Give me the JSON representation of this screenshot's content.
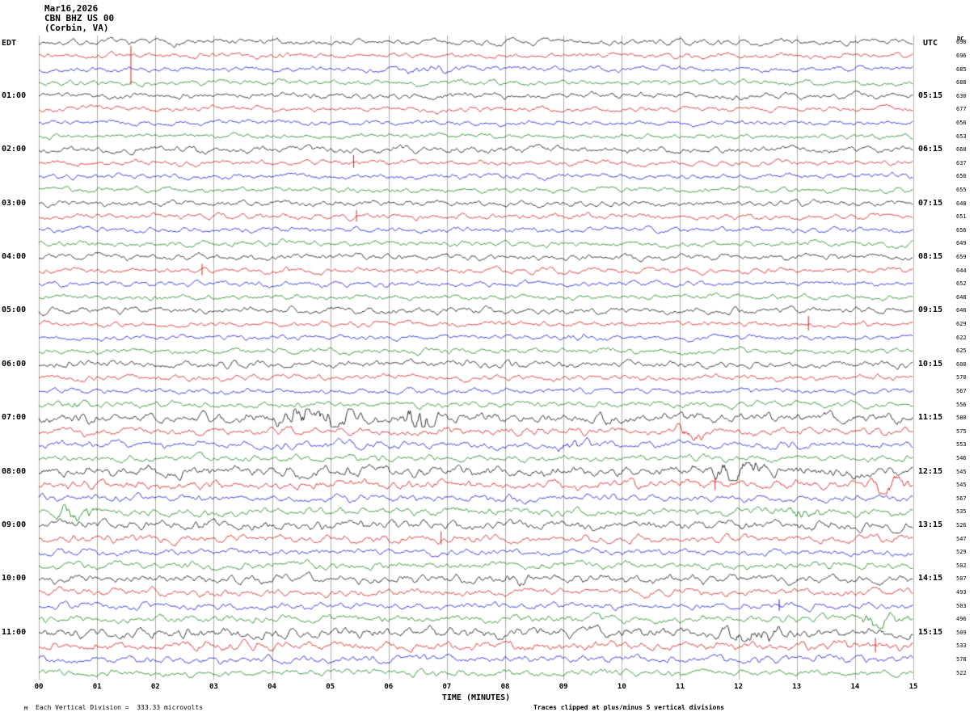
{
  "header": {
    "date": "Mar16,2026",
    "station": "CBN BHZ US 00",
    "location": "(Corbin, VA)",
    "left_timezone": "EDT",
    "right_timezone": "UTC",
    "dc_column_label": "DC"
  },
  "x_axis": {
    "label": "TIME (MINUTES)",
    "ticks": [
      "00",
      "01",
      "02",
      "03",
      "04",
      "05",
      "06",
      "07",
      "08",
      "09",
      "10",
      "11",
      "12",
      "13",
      "14",
      "15"
    ]
  },
  "footer": {
    "marker": "M",
    "scale_note": "Each Vertical Division =  333.33 microvolts",
    "clip_note": "Traces clipped at plus/minus 5 vertical divisions"
  },
  "left_time_labels": [
    {
      "row": 4,
      "text": "01:00"
    },
    {
      "row": 8,
      "text": "02:00"
    },
    {
      "row": 12,
      "text": "03:00"
    },
    {
      "row": 16,
      "text": "04:00"
    },
    {
      "row": 20,
      "text": "05:00"
    },
    {
      "row": 24,
      "text": "06:00"
    },
    {
      "row": 28,
      "text": "07:00"
    },
    {
      "row": 32,
      "text": "08:00"
    },
    {
      "row": 36,
      "text": "09:00"
    },
    {
      "row": 40,
      "text": "10:00"
    },
    {
      "row": 44,
      "text": "11:00"
    }
  ],
  "right_time_labels": [
    {
      "row": 4,
      "text": "05:15"
    },
    {
      "row": 8,
      "text": "06:15"
    },
    {
      "row": 12,
      "text": "07:15"
    },
    {
      "row": 16,
      "text": "08:15"
    },
    {
      "row": 20,
      "text": "09:15"
    },
    {
      "row": 24,
      "text": "10:15"
    },
    {
      "row": 28,
      "text": "11:15"
    },
    {
      "row": 32,
      "text": "12:15"
    },
    {
      "row": 36,
      "text": "13:15"
    },
    {
      "row": 40,
      "text": "14:15"
    },
    {
      "row": 44,
      "text": "15:15"
    }
  ],
  "dc_values": [
    690,
    696,
    685,
    688,
    630,
    677,
    656,
    653,
    660,
    637,
    650,
    655,
    648,
    651,
    656,
    649,
    659,
    644,
    652,
    648,
    646,
    629,
    622,
    625,
    600,
    570,
    567,
    556,
    580,
    575,
    553,
    546,
    545,
    545,
    567,
    535,
    526,
    547,
    529,
    502,
    507,
    493,
    503,
    496,
    509,
    533,
    578,
    522
  ],
  "chart_data": {
    "type": "line",
    "subtype": "seismogram-helicorder",
    "title": "CBN BHZ US 00 (Corbin, VA) — Mar16,2026",
    "xlabel": "TIME (MINUTES)",
    "xlim": [
      0,
      15
    ],
    "rows": 48,
    "minutes_per_row": 15,
    "first_row_start_edt": "00:00",
    "utc_offset_hours": 4,
    "grid": true,
    "grid_color": "#8a8a78",
    "trace_colors": [
      "#000000",
      "#d40000",
      "#0000d4",
      "#007a00"
    ],
    "units_note": "Each vertical division = 333.33 microvolts; traces clipped at plus/minus 5 vertical divisions",
    "row_amplitudes": [
      1.0,
      0.9,
      0.85,
      0.9,
      1.0,
      0.9,
      0.8,
      0.85,
      1.1,
      0.9,
      0.85,
      0.9,
      1.0,
      0.95,
      0.9,
      0.95,
      1.05,
      0.95,
      0.9,
      0.9,
      1.1,
      0.9,
      0.85,
      0.95,
      1.2,
      1.0,
      0.9,
      1.0,
      1.7,
      1.3,
      1.2,
      1.1,
      1.8,
      1.5,
      1.2,
      1.3,
      1.5,
      1.3,
      1.1,
      1.2,
      1.4,
      1.2,
      1.1,
      1.2,
      1.7,
      1.4,
      1.2,
      1.1
    ],
    "bursts": [
      {
        "row": 2,
        "start": 6.0,
        "end": 7.2,
        "scale": 1.9
      },
      {
        "row": 22,
        "start": 9.0,
        "end": 9.6,
        "scale": 1.9
      },
      {
        "row": 27,
        "start": 0.45,
        "end": 0.95,
        "scale": 2.3
      },
      {
        "row": 28,
        "start": 3.9,
        "end": 5.6,
        "scale": 3.2
      },
      {
        "row": 28,
        "start": 6.2,
        "end": 6.9,
        "scale": 4.0
      },
      {
        "row": 29,
        "start": 10.9,
        "end": 11.5,
        "scale": 2.4
      },
      {
        "row": 30,
        "start": 8.8,
        "end": 9.5,
        "scale": 2.2
      },
      {
        "row": 32,
        "start": 11.4,
        "end": 12.5,
        "scale": 3.0
      },
      {
        "row": 33,
        "start": 14.2,
        "end": 15.0,
        "scale": 2.4
      },
      {
        "row": 35,
        "start": 0.2,
        "end": 1.1,
        "scale": 2.5
      },
      {
        "row": 35,
        "start": 12.7,
        "end": 13.4,
        "scale": 2.0
      },
      {
        "row": 40,
        "start": 7.9,
        "end": 8.6,
        "scale": 1.8
      },
      {
        "row": 43,
        "start": 13.8,
        "end": 15.0,
        "scale": 3.0
      },
      {
        "row": 44,
        "start": 11.7,
        "end": 12.9,
        "scale": 2.2
      }
    ],
    "spikes": [
      {
        "row": 1,
        "min": 1.58,
        "up": 12,
        "down": 36
      },
      {
        "row": 9,
        "min": 5.4,
        "up": 10,
        "down": 6
      },
      {
        "row": 13,
        "min": 5.45,
        "up": 8,
        "down": 6
      },
      {
        "row": 17,
        "min": 2.8,
        "up": 8,
        "down": 6
      },
      {
        "row": 21,
        "min": 13.2,
        "up": 10,
        "down": 8
      },
      {
        "row": 33,
        "min": 11.6,
        "up": 9,
        "down": 6
      },
      {
        "row": 37,
        "min": 6.9,
        "up": 9,
        "down": 7
      },
      {
        "row": 42,
        "min": 12.7,
        "up": 8,
        "down": 6
      },
      {
        "row": 45,
        "min": 14.35,
        "up": 10,
        "down": 8
      }
    ]
  }
}
